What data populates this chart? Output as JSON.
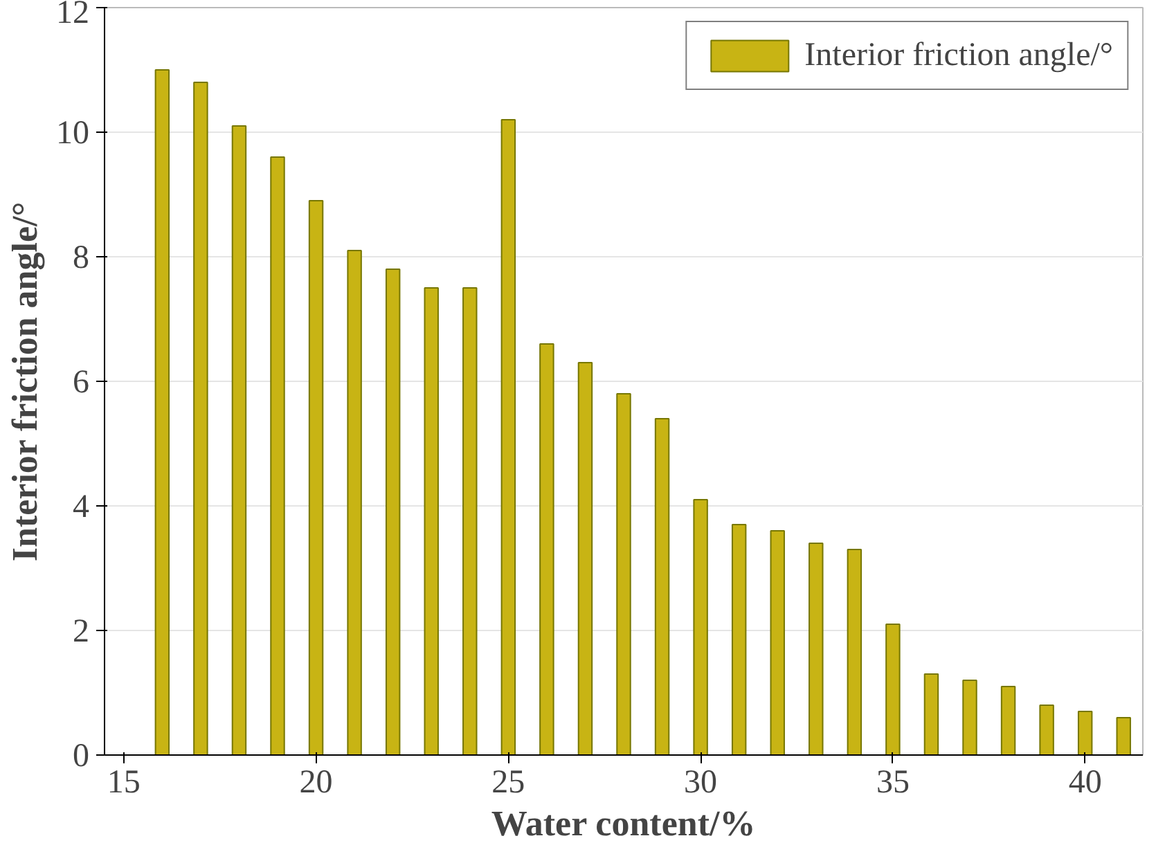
{
  "chart_data": {
    "type": "bar",
    "xlabel": "Water content/%",
    "ylabel": "Interior friction angle/°",
    "x": [
      16,
      17,
      18,
      19,
      20,
      21,
      22,
      23,
      24,
      25,
      26,
      27,
      28,
      29,
      30,
      31,
      32,
      33,
      34,
      35,
      36,
      37,
      38,
      39,
      40,
      41
    ],
    "series": [
      {
        "name": "Interior friction angle/°",
        "color": "#c8b414",
        "values": [
          11.0,
          10.8,
          10.1,
          9.6,
          8.9,
          8.1,
          7.8,
          7.5,
          7.5,
          10.2,
          6.6,
          6.3,
          5.8,
          5.4,
          4.1,
          3.7,
          3.6,
          3.4,
          3.3,
          2.1,
          1.3,
          1.2,
          1.1,
          0.8,
          0.7,
          0.6
        ]
      }
    ],
    "xlim": [
      14.5,
      41.5
    ],
    "xticks": [
      15,
      20,
      25,
      30,
      35,
      40
    ],
    "ylim": [
      0,
      12
    ],
    "yticks": [
      0,
      2,
      4,
      6,
      8,
      10,
      12
    ],
    "grid": "y",
    "legend": "top right"
  }
}
